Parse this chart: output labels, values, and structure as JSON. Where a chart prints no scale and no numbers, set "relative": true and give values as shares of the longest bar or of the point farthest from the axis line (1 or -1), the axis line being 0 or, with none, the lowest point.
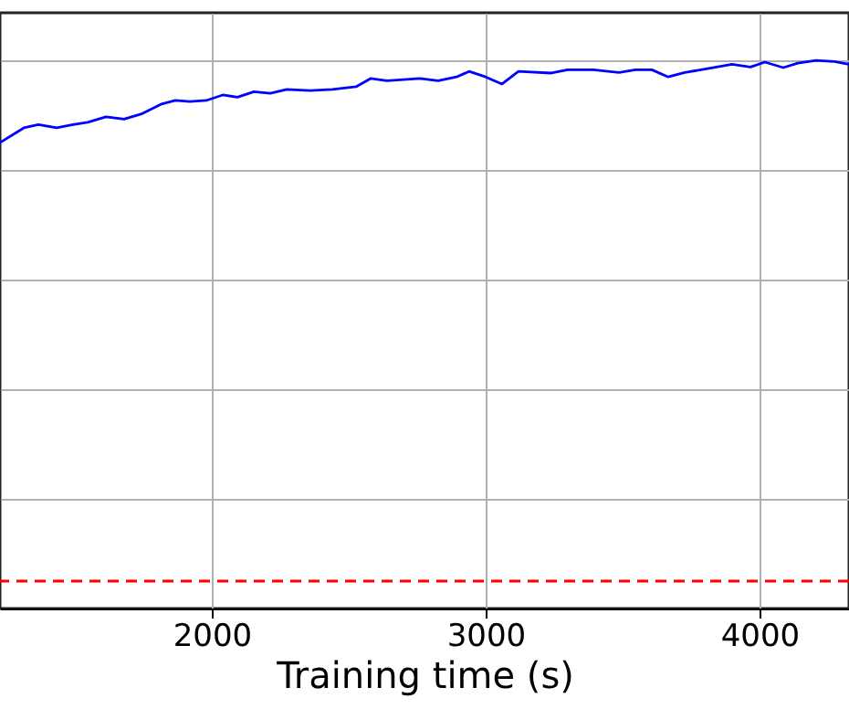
{
  "chart_data": {
    "type": "line",
    "xlabel": "Training time (s)",
    "relative": true,
    "grid": true,
    "line_style": "solid",
    "xlim": [
      1227,
      4327
    ],
    "xticks": [
      2000,
      3000,
      4000
    ],
    "x": [
      1227,
      1314,
      1367,
      1434,
      1494,
      1547,
      1614,
      1680,
      1747,
      1814,
      1867,
      1920,
      1980,
      2040,
      2094,
      2154,
      2214,
      2274,
      2360,
      2440,
      2527,
      2580,
      2640,
      2760,
      2827,
      2894,
      2940,
      3000,
      3060,
      3120,
      3240,
      3300,
      3394,
      3487,
      3547,
      3607,
      3667,
      3727,
      3834,
      3900,
      3967,
      4020,
      4087,
      4140,
      4207,
      4274,
      4327
    ],
    "series": [
      {
        "color": "#0000ff",
        "values": [
          0.85,
          0.877,
          0.883,
          0.877,
          0.883,
          0.887,
          0.897,
          0.893,
          0.903,
          0.92,
          0.927,
          0.925,
          0.927,
          0.937,
          0.933,
          0.943,
          0.94,
          0.947,
          0.945,
          0.947,
          0.952,
          0.967,
          0.963,
          0.967,
          0.963,
          0.97,
          0.98,
          0.97,
          0.957,
          0.98,
          0.977,
          0.983,
          0.983,
          0.978,
          0.983,
          0.983,
          0.97,
          0.978,
          0.987,
          0.993,
          0.988,
          0.997,
          0.987,
          0.995,
          1.0,
          0.998,
          0.993
        ]
      }
    ],
    "ref_lines": [
      {
        "axis": "y",
        "value": 0.05,
        "color": "#ff0000",
        "line_style": "dashed"
      }
    ]
  }
}
